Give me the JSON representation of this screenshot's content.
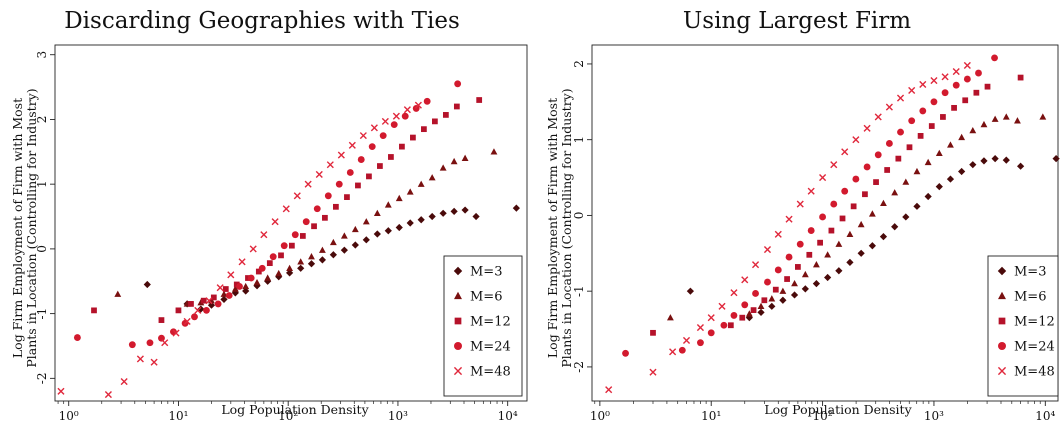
{
  "colors": {
    "M3": "#4a0a0a",
    "M6": "#7a1010",
    "M12": "#b5122a",
    "M24": "#d21a2e",
    "M48": "#e0283c",
    "axis": "#222222"
  },
  "chart_data": [
    {
      "type": "scatter",
      "title": "Discarding Geographies with Ties",
      "xlabel": "Log Population Density",
      "ylabel_lines": [
        "Log Firm Employment of Firm with Most",
        "Plants in Location (Controlling for Industry)"
      ],
      "x_scale": "log10",
      "xlim": [
        0.75,
        15000
      ],
      "ylim": [
        -2.35,
        3.15
      ],
      "x_ticks": [
        {
          "value": 1,
          "label": "10⁰"
        },
        {
          "value": 10,
          "label": "10¹"
        },
        {
          "value": 100,
          "label": "10²"
        },
        {
          "value": 1000,
          "label": "10³"
        },
        {
          "value": 10000,
          "label": "10⁴"
        }
      ],
      "y_ticks": [
        {
          "value": -2,
          "label": "-2"
        },
        {
          "value": -1,
          "label": "-1"
        },
        {
          "value": 0,
          "label": "0"
        },
        {
          "value": 1,
          "label": "1"
        },
        {
          "value": 2,
          "label": "2"
        },
        {
          "value": 3,
          "label": "3"
        }
      ],
      "legend_position": "bottom-right",
      "series": [
        {
          "name": "M=3",
          "marker": "diamond",
          "color_key": "M3",
          "x": [
            5.2,
            12,
            16,
            20,
            26,
            33,
            41,
            52,
            65,
            82,
            103,
            130,
            163,
            205,
            258,
            325,
            409,
            515,
            649,
            817,
            1028,
            1294,
            1629,
            2051,
            2582,
            3251,
            4093,
            5153,
            12000
          ],
          "y": [
            -0.55,
            -0.85,
            -0.93,
            -0.87,
            -0.78,
            -0.68,
            -0.65,
            -0.57,
            -0.5,
            -0.43,
            -0.37,
            -0.3,
            -0.23,
            -0.17,
            -0.09,
            -0.02,
            0.06,
            0.14,
            0.23,
            0.28,
            0.33,
            0.4,
            0.45,
            0.5,
            0.55,
            0.58,
            0.6,
            0.5,
            0.63
          ]
        },
        {
          "name": "M=6",
          "marker": "triangle",
          "color_key": "M6",
          "x": [
            2.8,
            12,
            16,
            20,
            26,
            33,
            41,
            52,
            65,
            82,
            103,
            130,
            163,
            205,
            258,
            325,
            409,
            515,
            649,
            817,
            1028,
            1294,
            1629,
            2051,
            2582,
            3251,
            4093,
            7500
          ],
          "y": [
            -0.7,
            -0.85,
            -0.83,
            -0.8,
            -0.7,
            -0.62,
            -0.58,
            -0.52,
            -0.45,
            -0.38,
            -0.3,
            -0.2,
            -0.12,
            -0.02,
            0.1,
            0.2,
            0.3,
            0.42,
            0.55,
            0.68,
            0.78,
            0.88,
            1.0,
            1.1,
            1.25,
            1.35,
            1.4,
            1.5
          ]
        },
        {
          "name": "M=12",
          "marker": "square",
          "color_key": "M12",
          "x": [
            1.7,
            7,
            10,
            13,
            17,
            21,
            27,
            34,
            43,
            54,
            68,
            86,
            108,
            136,
            172,
            216,
            272,
            343,
            432,
            544,
            685,
            863,
            1087,
            1369,
            1724,
            2171,
            2734,
            3443,
            5500
          ],
          "y": [
            -0.95,
            -1.1,
            -0.95,
            -0.85,
            -0.8,
            -0.75,
            -0.62,
            -0.55,
            -0.45,
            -0.35,
            -0.22,
            -0.1,
            0.05,
            0.2,
            0.35,
            0.48,
            0.65,
            0.8,
            0.98,
            1.12,
            1.28,
            1.42,
            1.58,
            1.72,
            1.85,
            1.97,
            2.07,
            2.2,
            2.3
          ]
        },
        {
          "name": "M=24",
          "marker": "circle",
          "color_key": "M24",
          "x": [
            1.2,
            3.8,
            5.5,
            7,
            9,
            11.5,
            14,
            18,
            23,
            29,
            36,
            46,
            58,
            73,
            92,
            116,
            146,
            184,
            232,
            292,
            368,
            463,
            583,
            734,
            925,
            1165,
            1467,
            1847,
            3500
          ],
          "y": [
            -1.37,
            -1.48,
            -1.45,
            -1.38,
            -1.28,
            -1.15,
            -1.05,
            -0.95,
            -0.85,
            -0.72,
            -0.58,
            -0.45,
            -0.3,
            -0.12,
            0.05,
            0.22,
            0.42,
            0.62,
            0.82,
            1.0,
            1.18,
            1.38,
            1.58,
            1.75,
            1.92,
            2.05,
            2.17,
            2.28,
            2.55
          ]
        },
        {
          "name": "M=48",
          "marker": "cross",
          "color_key": "M48",
          "x": [
            0.85,
            2.3,
            3.2,
            4.5,
            6,
            7.5,
            9.5,
            12,
            15,
            19,
            24,
            30,
            38,
            48,
            60,
            76,
            96,
            121,
            152,
            192,
            242,
            305,
            384,
            484,
            610,
            768,
            968,
            1219,
            1536
          ],
          "y": [
            -2.2,
            -2.25,
            -2.05,
            -1.7,
            -1.75,
            -1.45,
            -1.3,
            -1.12,
            -0.95,
            -0.8,
            -0.6,
            -0.4,
            -0.2,
            0.0,
            0.22,
            0.42,
            0.62,
            0.82,
            1.0,
            1.15,
            1.3,
            1.45,
            1.6,
            1.75,
            1.87,
            1.97,
            2.05,
            2.15,
            2.22
          ]
        }
      ]
    },
    {
      "type": "scatter",
      "title": "Using Largest Firm",
      "xlabel": "Log Population Density",
      "ylabel_lines": [
        "Log Firm Employment of Firm with Most",
        "Plants in Location (Controlling for Industry)"
      ],
      "x_scale": "log10",
      "xlim": [
        0.85,
        13000
      ],
      "ylim": [
        -2.45,
        2.25
      ],
      "x_ticks": [
        {
          "value": 1,
          "label": "10⁰"
        },
        {
          "value": 10,
          "label": "10¹"
        },
        {
          "value": 100,
          "label": "10²"
        },
        {
          "value": 1000,
          "label": "10³"
        },
        {
          "value": 10000,
          "label": "10⁴"
        }
      ],
      "y_ticks": [
        {
          "value": -2,
          "label": "-2"
        },
        {
          "value": -1,
          "label": "-1"
        },
        {
          "value": 0,
          "label": "0"
        },
        {
          "value": 1,
          "label": "1"
        },
        {
          "value": 2,
          "label": "2"
        }
      ],
      "legend_position": "bottom-right",
      "series": [
        {
          "name": "M=3",
          "marker": "diamond",
          "color_key": "M3",
          "x": [
            6.5,
            22,
            28,
            35,
            44,
            56,
            70,
            88,
            111,
            140,
            176,
            222,
            280,
            352,
            444,
            559,
            704,
            887,
            1117,
            1407,
            1773,
            2233,
            2813,
            3543,
            4463,
            6000,
            12500
          ],
          "y": [
            -1.0,
            -1.35,
            -1.28,
            -1.2,
            -1.12,
            -1.05,
            -0.97,
            -0.9,
            -0.82,
            -0.73,
            -0.62,
            -0.5,
            -0.4,
            -0.28,
            -0.15,
            -0.02,
            0.12,
            0.25,
            0.38,
            0.48,
            0.58,
            0.67,
            0.72,
            0.75,
            0.73,
            0.65,
            0.75
          ]
        },
        {
          "name": "M=6",
          "marker": "triangle",
          "color_key": "M6",
          "x": [
            4.3,
            22,
            28,
            35,
            44,
            56,
            70,
            88,
            111,
            140,
            176,
            222,
            280,
            352,
            444,
            559,
            704,
            887,
            1117,
            1407,
            1773,
            2233,
            2813,
            3543,
            4463,
            5620,
            9500
          ],
          "y": [
            -1.35,
            -1.3,
            -1.2,
            -1.1,
            -1.0,
            -0.9,
            -0.78,
            -0.65,
            -0.52,
            -0.38,
            -0.25,
            -0.12,
            0.02,
            0.16,
            0.3,
            0.44,
            0.58,
            0.7,
            0.82,
            0.93,
            1.03,
            1.12,
            1.2,
            1.27,
            1.3,
            1.25,
            1.3
          ]
        },
        {
          "name": "M=12",
          "marker": "square",
          "color_key": "M12",
          "x": [
            3.0,
            15,
            19,
            24,
            30,
            38,
            48,
            60,
            76,
            95,
            120,
            151,
            190,
            240,
            302,
            380,
            479,
            603,
            759,
            956,
            1204,
            1516,
            1909,
            2404,
            3027,
            6000
          ],
          "y": [
            -1.55,
            -1.45,
            -1.35,
            -1.25,
            -1.12,
            -0.98,
            -0.84,
            -0.68,
            -0.52,
            -0.36,
            -0.2,
            -0.04,
            0.12,
            0.28,
            0.44,
            0.6,
            0.75,
            0.9,
            1.05,
            1.18,
            1.3,
            1.42,
            1.52,
            1.62,
            1.7,
            1.82
          ]
        },
        {
          "name": "M=24",
          "marker": "circle",
          "color_key": "M24",
          "x": [
            1.7,
            5.5,
            8,
            10,
            13,
            16,
            20,
            25,
            32,
            40,
            50,
            63,
            79,
            100,
            126,
            158,
            199,
            251,
            316,
            398,
            501,
            631,
            794,
            1000,
            1259,
            1585,
            1995,
            2512,
            3500
          ],
          "y": [
            -1.82,
            -1.78,
            -1.68,
            -1.55,
            -1.45,
            -1.32,
            -1.18,
            -1.03,
            -0.88,
            -0.72,
            -0.55,
            -0.38,
            -0.2,
            -0.02,
            0.15,
            0.32,
            0.48,
            0.64,
            0.8,
            0.95,
            1.1,
            1.25,
            1.38,
            1.5,
            1.62,
            1.72,
            1.8,
            1.88,
            2.08
          ]
        },
        {
          "name": "M=48",
          "marker": "cross",
          "color_key": "M48",
          "x": [
            1.2,
            3.0,
            4.5,
            6,
            8,
            10,
            12.5,
            16,
            20,
            25,
            32,
            40,
            50,
            63,
            79,
            100,
            126,
            158,
            199,
            251,
            316,
            398,
            501,
            631,
            794,
            1000,
            1259,
            1585,
            1995
          ],
          "y": [
            -2.3,
            -2.07,
            -1.8,
            -1.65,
            -1.48,
            -1.35,
            -1.2,
            -1.02,
            -0.85,
            -0.65,
            -0.45,
            -0.25,
            -0.05,
            0.15,
            0.32,
            0.5,
            0.67,
            0.84,
            1.0,
            1.15,
            1.3,
            1.43,
            1.55,
            1.65,
            1.73,
            1.78,
            1.83,
            1.9,
            1.98
          ]
        }
      ]
    }
  ]
}
